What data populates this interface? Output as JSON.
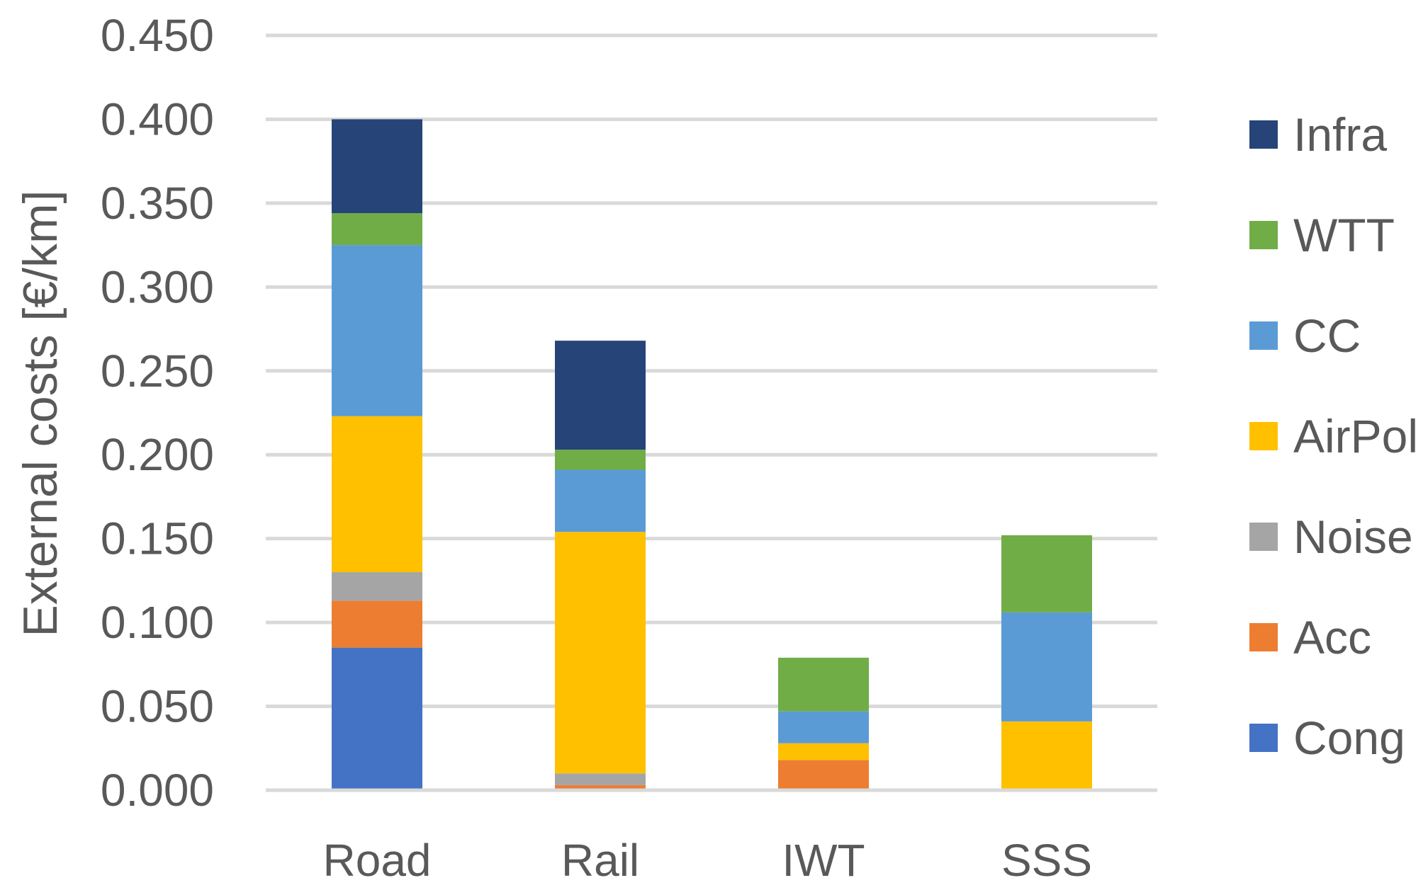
{
  "chart_data": {
    "type": "bar",
    "stacked": true,
    "title": "",
    "xlabel": "",
    "ylabel": "External costs [€/km]",
    "ylim": [
      0,
      0.45
    ],
    "ytick_step": 0.05,
    "ytick_labels": [
      "0.000",
      "0.050",
      "0.100",
      "0.150",
      "0.200",
      "0.250",
      "0.300",
      "0.350",
      "0.400",
      "0.450"
    ],
    "grid": true,
    "legend_position": "right",
    "categories": [
      "Road",
      "Rail",
      "IWT",
      "SSS"
    ],
    "series": [
      {
        "name": "Cong",
        "color": "#4472C4",
        "values": [
          0.085,
          0.0,
          0.0,
          0.0
        ]
      },
      {
        "name": "Acc",
        "color": "#ED7D31",
        "values": [
          0.028,
          0.003,
          0.018,
          0.0
        ]
      },
      {
        "name": "Noise",
        "color": "#A5A5A5",
        "values": [
          0.017,
          0.007,
          0.0,
          0.0
        ]
      },
      {
        "name": "AirPol",
        "color": "#FFC000",
        "values": [
          0.093,
          0.144,
          0.01,
          0.041
        ]
      },
      {
        "name": "CC",
        "color": "#5B9BD5",
        "values": [
          0.102,
          0.037,
          0.019,
          0.065
        ]
      },
      {
        "name": "WTT",
        "color": "#70AD47",
        "values": [
          0.019,
          0.012,
          0.032,
          0.046
        ]
      },
      {
        "name": "Infra",
        "color": "#264478",
        "values": [
          0.056,
          0.065,
          0.0,
          0.0
        ]
      }
    ]
  }
}
